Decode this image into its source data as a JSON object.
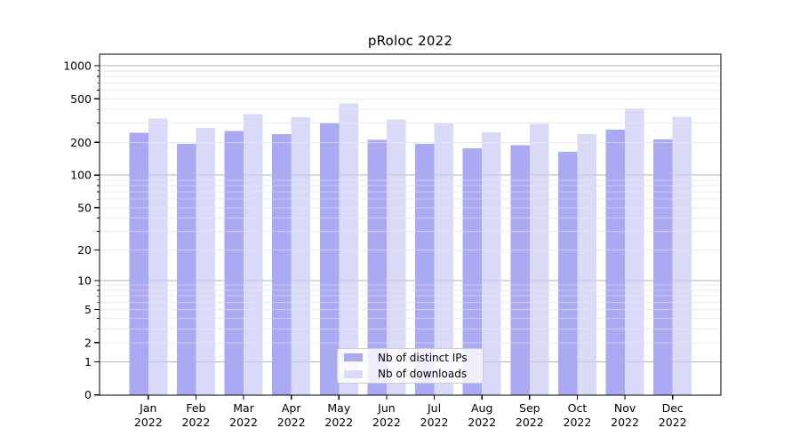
{
  "chart_data": {
    "type": "bar",
    "title": "pRoloc 2022",
    "categories": [
      "Jan 2022",
      "Feb 2022",
      "Mar 2022",
      "Apr 2022",
      "May 2022",
      "Jun 2022",
      "Jul 2022",
      "Aug 2022",
      "Sep 2022",
      "Oct 2022",
      "Nov 2022",
      "Dec 2022"
    ],
    "series": [
      {
        "name": "Nb of distinct IPs",
        "color": "#a9a9f4",
        "values": [
          245,
          193,
          255,
          237,
          300,
          210,
          193,
          176,
          188,
          164,
          260,
          212
        ]
      },
      {
        "name": "Nb of downloads",
        "color": "#d9d9f8",
        "values": [
          330,
          272,
          362,
          340,
          455,
          324,
          298,
          246,
          295,
          238,
          410,
          342
        ]
      }
    ],
    "y_ticks": [
      0,
      1,
      2,
      5,
      10,
      20,
      50,
      100,
      200,
      500,
      1000
    ],
    "y_scale": "log1p",
    "ylim": [
      0,
      1280
    ],
    "xlabel": "",
    "ylabel": "",
    "grid": true,
    "legend_position": "bottom-center-inside",
    "colors": {
      "grid_major": "#b3b3b3",
      "grid_minor": "#ebebeb",
      "axis_frame": "#000000",
      "tick_text": "#000000",
      "figure_bg": "#ffffff"
    }
  }
}
